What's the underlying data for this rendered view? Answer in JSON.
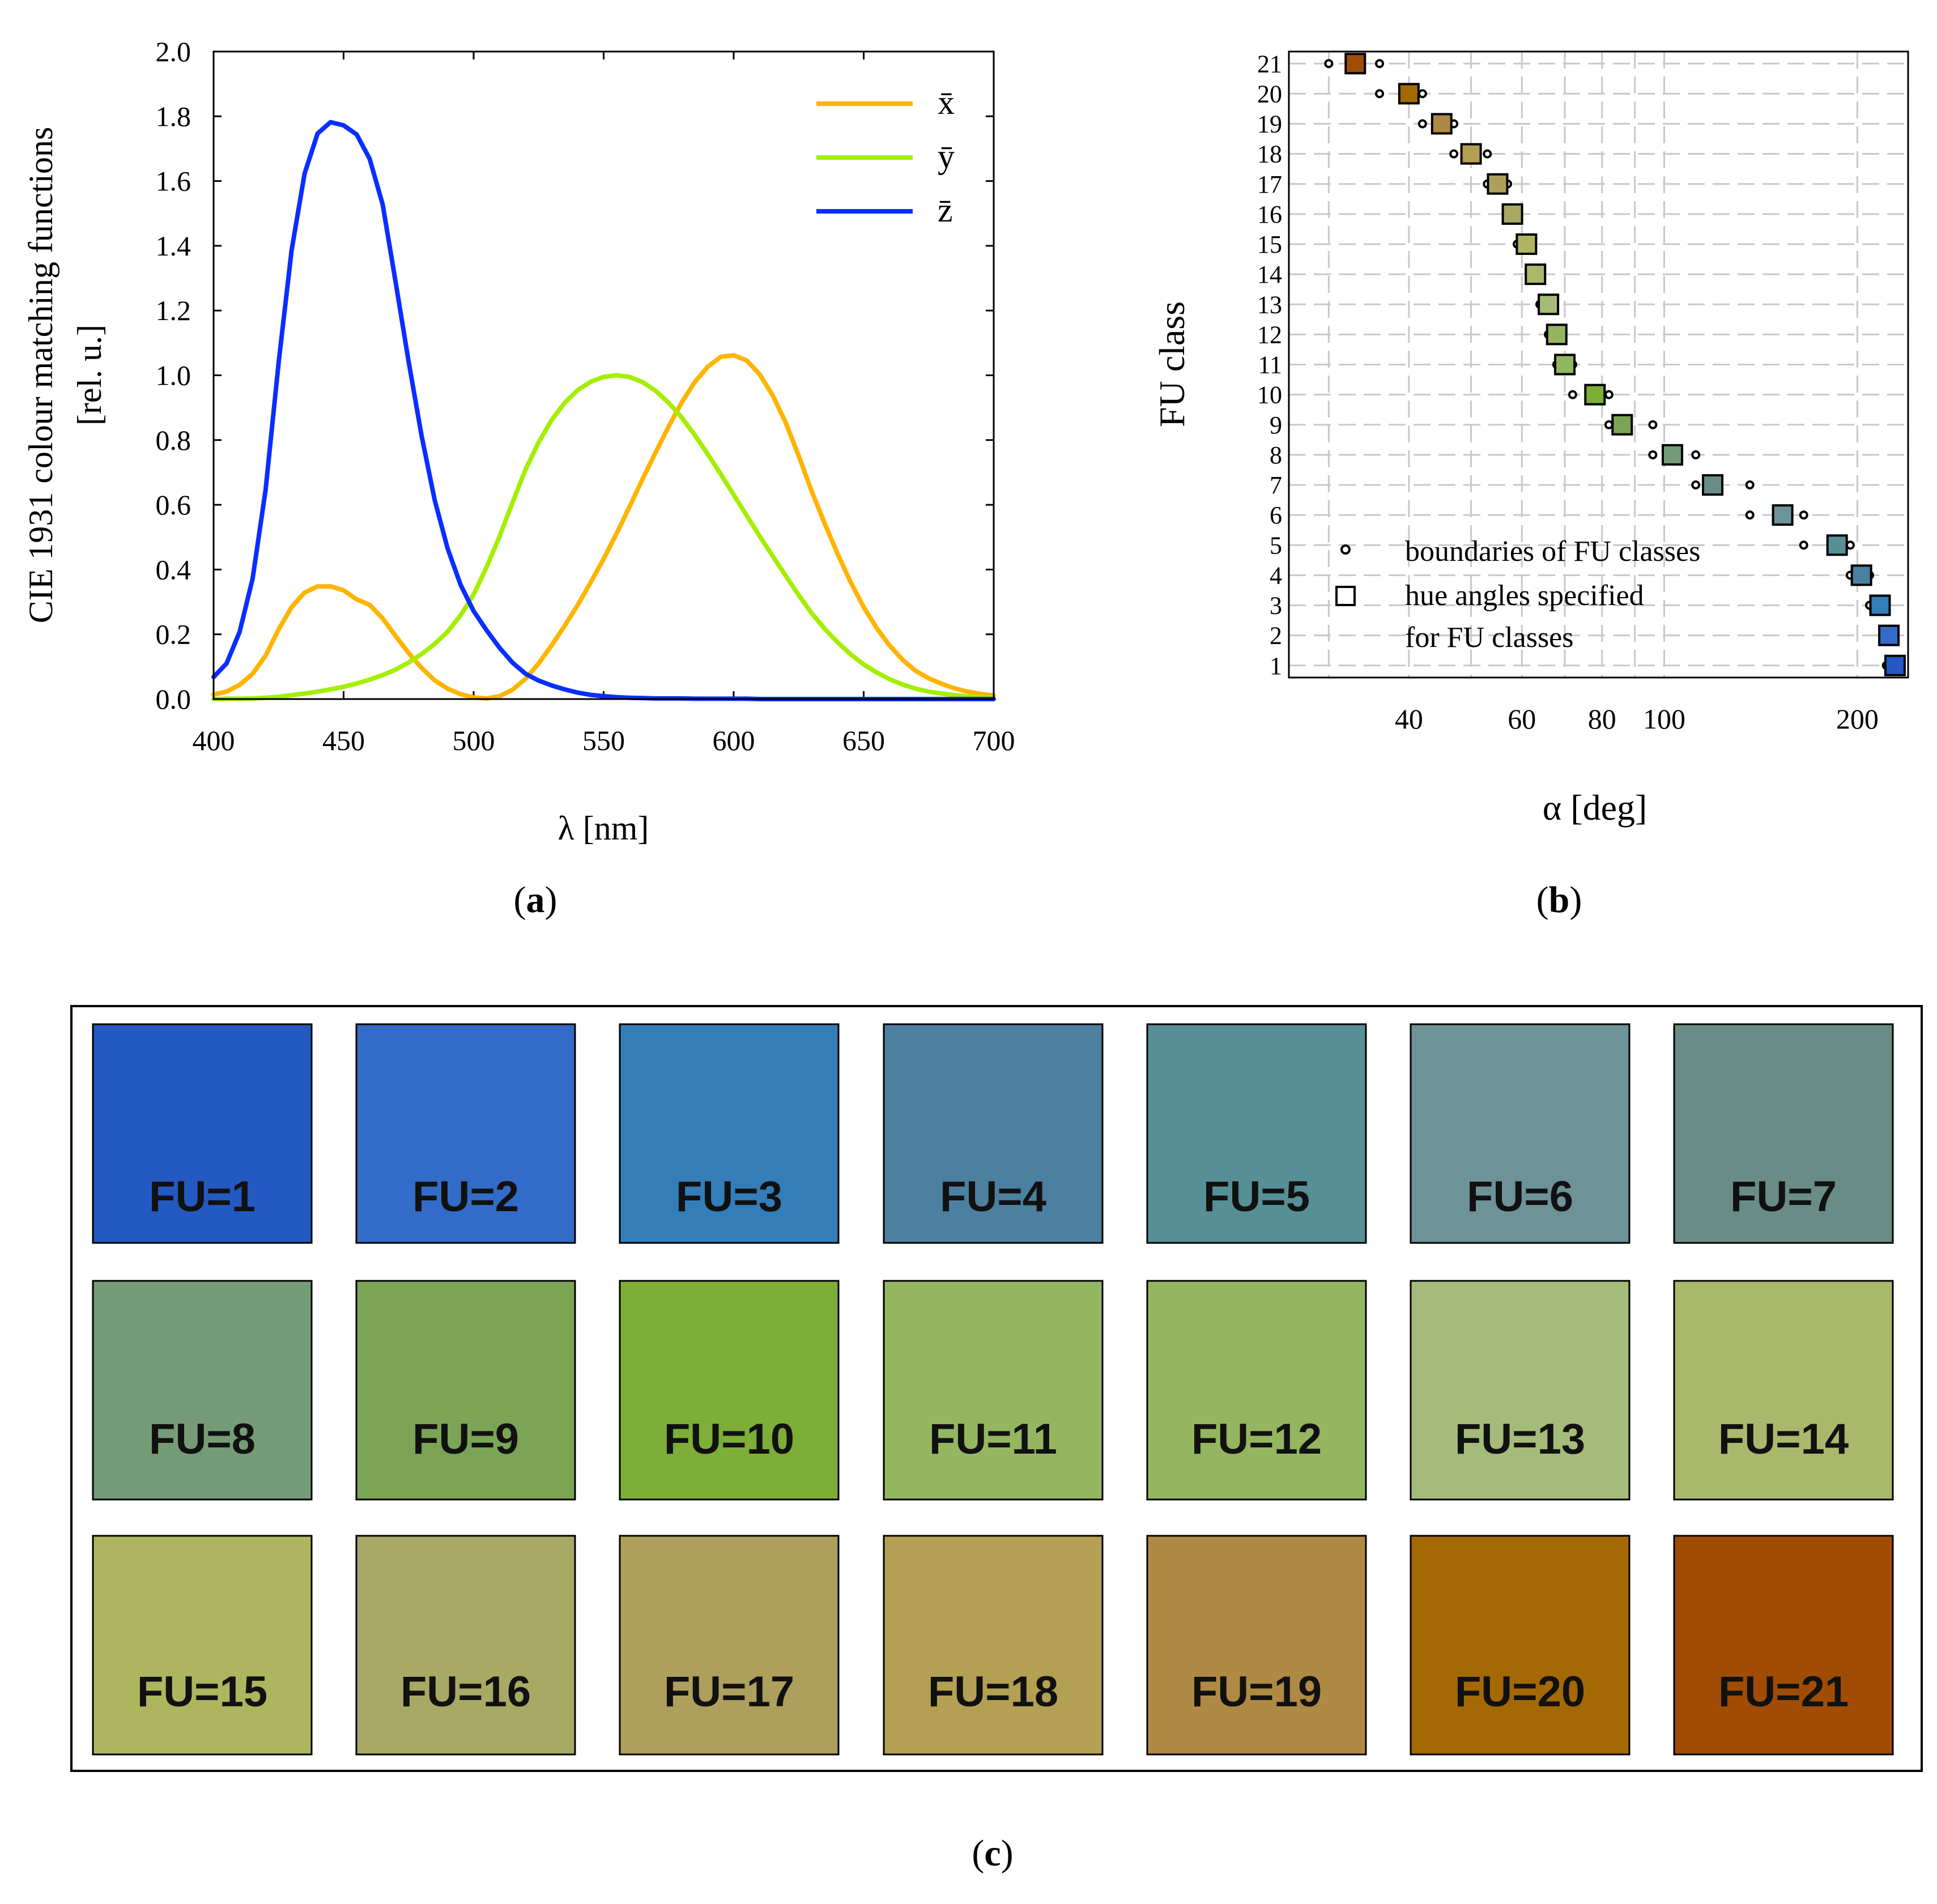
{
  "panels": {
    "a": {
      "caption": "a"
    },
    "b": {
      "caption": "b"
    },
    "c": {
      "caption": "c"
    }
  },
  "chart_data": [
    {
      "type": "line",
      "xlabel": "λ [nm]",
      "ylabel_lines": [
        "CIE 1931 colour matching functions",
        "[rel. u.]"
      ],
      "xlim": [
        400,
        700
      ],
      "ylim": [
        0,
        2.0
      ],
      "xticks": [
        400,
        450,
        500,
        550,
        600,
        650,
        700
      ],
      "yticks": [
        "0.0",
        "0.2",
        "0.4",
        "0.6",
        "0.8",
        "1.0",
        "1.2",
        "1.4",
        "1.6",
        "1.8",
        "2.0"
      ],
      "legend_position": "top-right",
      "x": [
        400,
        405,
        410,
        415,
        420,
        425,
        430,
        435,
        440,
        445,
        450,
        455,
        460,
        465,
        470,
        475,
        480,
        485,
        490,
        495,
        500,
        505,
        510,
        515,
        520,
        525,
        530,
        535,
        540,
        545,
        550,
        555,
        560,
        565,
        570,
        575,
        580,
        585,
        590,
        595,
        600,
        605,
        610,
        615,
        620,
        625,
        630,
        635,
        640,
        645,
        650,
        655,
        660,
        665,
        670,
        675,
        680,
        685,
        690,
        695,
        700
      ],
      "series": [
        {
          "name": "x",
          "label": "x̄",
          "color": "#ffb400",
          "values": [
            0.014,
            0.023,
            0.044,
            0.078,
            0.134,
            0.215,
            0.284,
            0.329,
            0.348,
            0.348,
            0.336,
            0.308,
            0.291,
            0.249,
            0.195,
            0.142,
            0.096,
            0.058,
            0.032,
            0.015,
            0.005,
            0.002,
            0.009,
            0.029,
            0.063,
            0.11,
            0.166,
            0.226,
            0.29,
            0.36,
            0.433,
            0.512,
            0.595,
            0.68,
            0.762,
            0.842,
            0.916,
            0.979,
            1.026,
            1.057,
            1.062,
            1.046,
            1.003,
            0.938,
            0.854,
            0.751,
            0.642,
            0.542,
            0.448,
            0.361,
            0.284,
            0.219,
            0.165,
            0.121,
            0.087,
            0.064,
            0.047,
            0.033,
            0.023,
            0.016,
            0.011
          ]
        },
        {
          "name": "y",
          "label": "ȳ",
          "color": "#a4ef00",
          "values": [
            0.0,
            0.001,
            0.001,
            0.002,
            0.004,
            0.007,
            0.012,
            0.017,
            0.023,
            0.03,
            0.038,
            0.048,
            0.06,
            0.074,
            0.091,
            0.113,
            0.139,
            0.17,
            0.208,
            0.259,
            0.323,
            0.408,
            0.503,
            0.608,
            0.71,
            0.793,
            0.862,
            0.915,
            0.954,
            0.98,
            0.995,
            1.0,
            0.995,
            0.979,
            0.952,
            0.915,
            0.87,
            0.816,
            0.757,
            0.695,
            0.631,
            0.567,
            0.503,
            0.442,
            0.381,
            0.321,
            0.265,
            0.217,
            0.175,
            0.138,
            0.107,
            0.082,
            0.061,
            0.045,
            0.032,
            0.023,
            0.017,
            0.012,
            0.008,
            0.006,
            0.004
          ]
        },
        {
          "name": "z",
          "label": "z̄",
          "color": "#0a2eff",
          "values": [
            0.068,
            0.11,
            0.207,
            0.372,
            0.646,
            1.039,
            1.386,
            1.623,
            1.747,
            1.782,
            1.772,
            1.744,
            1.669,
            1.528,
            1.288,
            1.042,
            0.813,
            0.616,
            0.465,
            0.353,
            0.272,
            0.212,
            0.158,
            0.112,
            0.078,
            0.057,
            0.042,
            0.03,
            0.02,
            0.013,
            0.009,
            0.006,
            0.004,
            0.003,
            0.002,
            0.002,
            0.002,
            0.001,
            0.001,
            0.001,
            0.001,
            0.001,
            0.0,
            0.0,
            0.0,
            0.0,
            0.0,
            0.0,
            0.0,
            0.0,
            0.0,
            0.0,
            0.0,
            0.0,
            0.0,
            0.0,
            0.0,
            0.0,
            0.0,
            0.0,
            0.0
          ]
        }
      ]
    },
    {
      "type": "scatter",
      "xlabel": "α [deg]",
      "ylabel": "FU class",
      "xscale": "log",
      "xlim": [
        26,
        240
      ],
      "ylim": [
        0.6,
        21.4
      ],
      "xticks": [
        40,
        60,
        80,
        100,
        200
      ],
      "gridlines_x": [
        30,
        40,
        50,
        60,
        70,
        80,
        90,
        100,
        200
      ],
      "yticks": [
        1,
        2,
        3,
        4,
        5,
        6,
        7,
        8,
        9,
        10,
        11,
        12,
        13,
        14,
        15,
        16,
        17,
        18,
        19,
        20,
        21
      ],
      "grid": true,
      "legend": {
        "position": "bottom-left",
        "boundaries": "boundaries of FU classes",
        "hue_line1": "hue angles specified",
        "hue_line2": "for FU classes"
      },
      "hue_angles": [
        {
          "fu": 1,
          "alpha": 229.0
        },
        {
          "fu": 2,
          "alpha": 224.0
        },
        {
          "fu": 3,
          "alpha": 217.0
        },
        {
          "fu": 4,
          "alpha": 203.0
        },
        {
          "fu": 5,
          "alpha": 186.0
        },
        {
          "fu": 6,
          "alpha": 153.0
        },
        {
          "fu": 7,
          "alpha": 119.0
        },
        {
          "fu": 8,
          "alpha": 103.0
        },
        {
          "fu": 9,
          "alpha": 86.0
        },
        {
          "fu": 10,
          "alpha": 78.0
        },
        {
          "fu": 11,
          "alpha": 70.0
        },
        {
          "fu": 12,
          "alpha": 68.0
        },
        {
          "fu": 13,
          "alpha": 66.0
        },
        {
          "fu": 14,
          "alpha": 63.0
        },
        {
          "fu": 15,
          "alpha": 61.0
        },
        {
          "fu": 16,
          "alpha": 58.0
        },
        {
          "fu": 17,
          "alpha": 55.0
        },
        {
          "fu": 18,
          "alpha": 50.0
        },
        {
          "fu": 19,
          "alpha": 45.0
        },
        {
          "fu": 20,
          "alpha": 40.0
        },
        {
          "fu": 21,
          "alpha": 33.0
        }
      ],
      "boundaries": [
        {
          "fu": 1,
          "low": 222.0,
          "high": 232.0
        },
        {
          "fu": 2,
          "low": 222.0,
          "high": 226.0
        },
        {
          "fu": 3,
          "low": 209.0,
          "high": 222.0
        },
        {
          "fu": 4,
          "low": 195.0,
          "high": 209.0
        },
        {
          "fu": 5,
          "low": 165.0,
          "high": 195.0
        },
        {
          "fu": 6,
          "low": 136.0,
          "high": 165.0
        },
        {
          "fu": 7,
          "low": 112.0,
          "high": 136.0
        },
        {
          "fu": 8,
          "low": 96.0,
          "high": 112.0
        },
        {
          "fu": 9,
          "low": 82.0,
          "high": 96.0
        },
        {
          "fu": 10,
          "low": 72.0,
          "high": 82.0
        },
        {
          "fu": 11,
          "low": 68.0,
          "high": 72.0
        },
        {
          "fu": 12,
          "low": 66.0,
          "high": 68.0
        },
        {
          "fu": 13,
          "low": 64.0,
          "high": 66.0
        },
        {
          "fu": 14,
          "low": 62.0,
          "high": 64.0
        },
        {
          "fu": 15,
          "low": 59.0,
          "high": 62.0
        },
        {
          "fu": 16,
          "low": 57.0,
          "high": 59.0
        },
        {
          "fu": 17,
          "low": 53.0,
          "high": 57.0
        },
        {
          "fu": 18,
          "low": 47.0,
          "high": 53.0
        },
        {
          "fu": 19,
          "low": 42.0,
          "high": 47.0
        },
        {
          "fu": 20,
          "low": 36.0,
          "high": 42.0
        },
        {
          "fu": 21,
          "low": 30.0,
          "high": 36.0
        }
      ]
    }
  ],
  "swatches": [
    {
      "label": "FU=1",
      "color": "#2359c0"
    },
    {
      "label": "FU=2",
      "color": "#336cc8"
    },
    {
      "label": "FU=3",
      "color": "#337db9"
    },
    {
      "label": "FU=4",
      "color": "#4b80a0"
    },
    {
      "label": "FU=5",
      "color": "#568f96"
    },
    {
      "label": "FU=6",
      "color": "#6d9298"
    },
    {
      "label": "FU=7",
      "color": "#698c86"
    },
    {
      "label": "FU=8",
      "color": "#759c76"
    },
    {
      "label": "FU=9",
      "color": "#7ba454"
    },
    {
      "label": "FU=10",
      "color": "#7dae38"
    },
    {
      "label": "FU=11",
      "color": "#94b660"
    },
    {
      "label": "FU=12",
      "color": "#94b660"
    },
    {
      "label": "FU=13",
      "color": "#a5bb79"
    },
    {
      "label": "FU=14",
      "color": "#aab86d"
    },
    {
      "label": "FU=15",
      "color": "#adb55f"
    },
    {
      "label": "FU=16",
      "color": "#a8a965"
    },
    {
      "label": "FU=17",
      "color": "#ae9f5d"
    },
    {
      "label": "FU=18",
      "color": "#b3a053"
    },
    {
      "label": "FU=19",
      "color": "#af8a44"
    },
    {
      "label": "FU=20",
      "color": "#a46905"
    },
    {
      "label": "FU=21",
      "color": "#a14c05"
    }
  ]
}
